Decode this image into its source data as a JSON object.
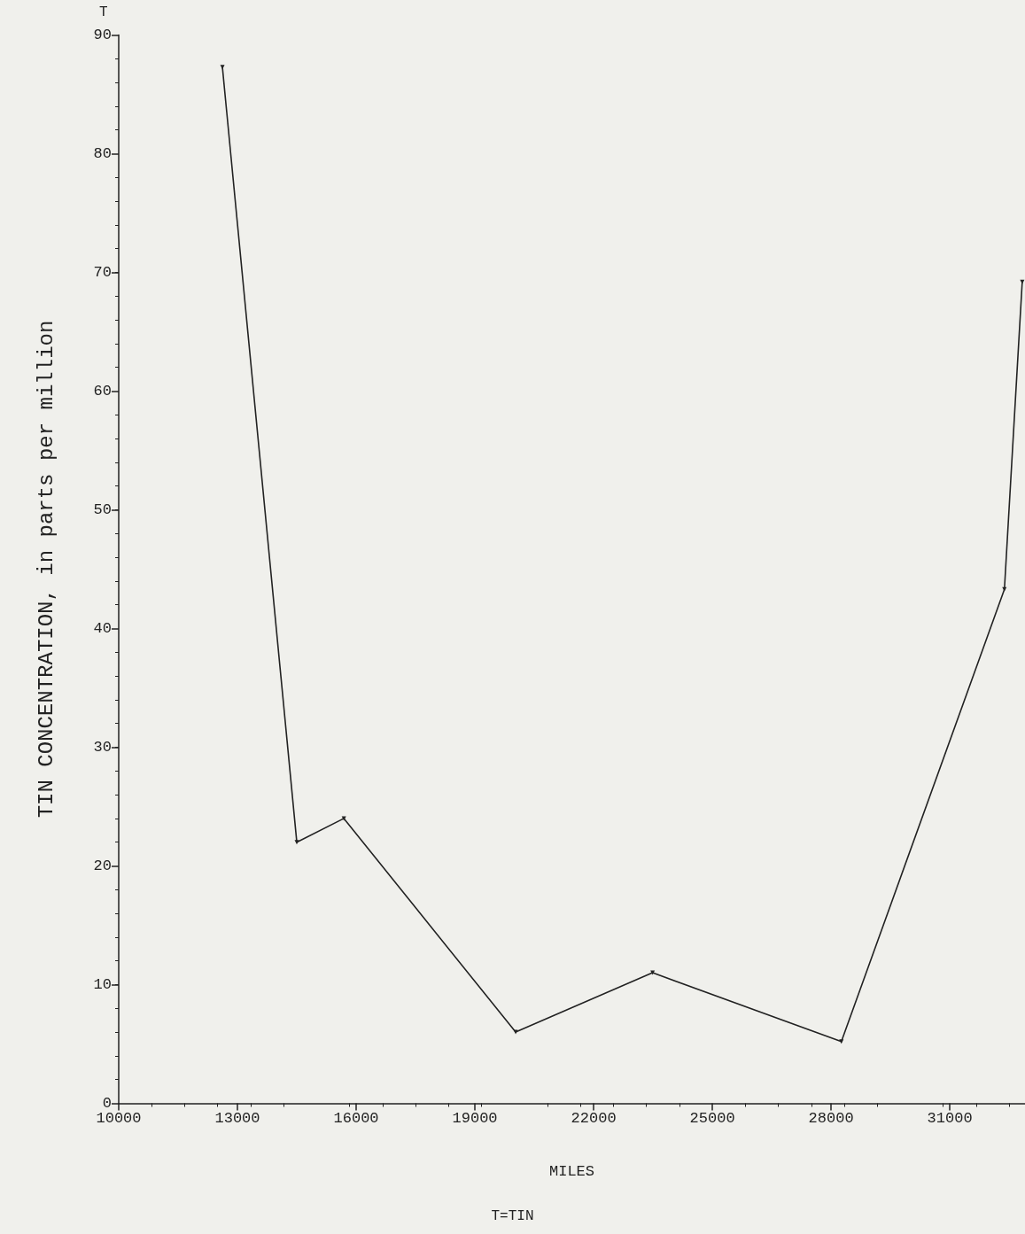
{
  "chart_data": {
    "type": "line",
    "xlabel": "MILES",
    "ylabel": "TIN CONCENTRATION, in parts per million",
    "annotations": [
      "T",
      "T=TIN"
    ],
    "x": [
      12620,
      14500,
      15690,
      20030,
      23490,
      28260,
      32380,
      32830
    ],
    "series": [
      {
        "color": "#222222",
        "values": [
          87.3,
          22.0,
          24.0,
          6.0,
          11.0,
          5.2,
          43.3,
          69.2
        ]
      }
    ],
    "xlim": [
      10000,
      32900
    ],
    "xticks": [
      10000,
      13000,
      16000,
      19000,
      22000,
      25000,
      28000,
      31000
    ],
    "ylim": [
      0,
      90
    ],
    "yticks": [
      0,
      10,
      20,
      30,
      40,
      50,
      60,
      70,
      80,
      90
    ],
    "grid": false,
    "marker": "triangle",
    "line_style": "solid"
  }
}
